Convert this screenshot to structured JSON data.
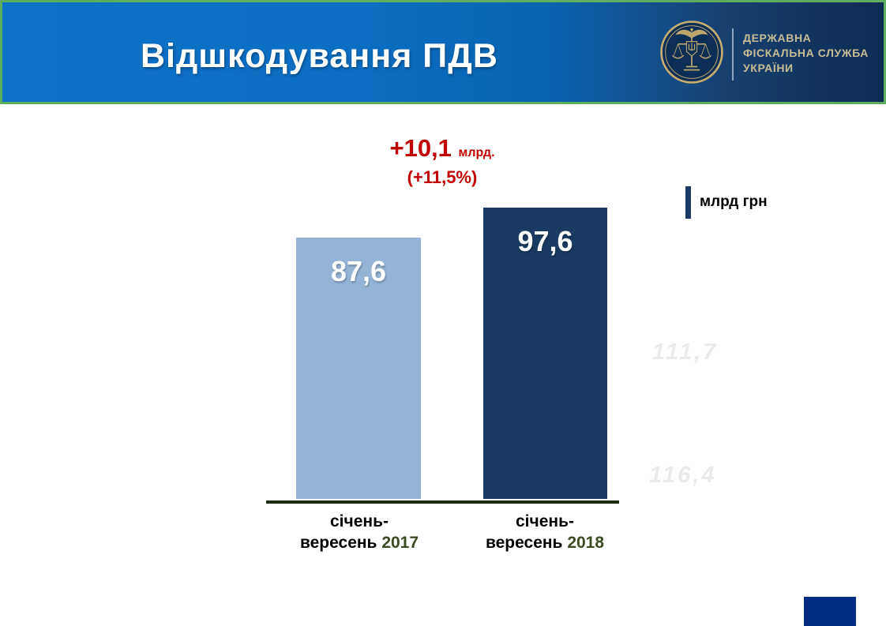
{
  "header": {
    "title": "Відшкодування ПДВ",
    "logo": {
      "org_line1": "ДЕРЖАВНА",
      "org_line2": "ФІСКАЛЬНА СЛУЖБА",
      "org_line3": "УКРАЇНИ"
    }
  },
  "annotation": {
    "delta_value": "+10,1",
    "delta_unit": "млрд.",
    "delta_percent": "(+11,5%)",
    "color": "#C00000"
  },
  "unit_label": "млрд грн",
  "chart_data": {
    "type": "bar",
    "title": "Відшкодування ПДВ",
    "ylabel": "млрд грн",
    "categories": [
      "січень-вересень 2017",
      "січень-вересень 2018"
    ],
    "values": [
      87.6,
      97.6
    ],
    "value_labels": [
      "87,6",
      "97,6"
    ],
    "series_colors": [
      "#95B3D7",
      "#1A3A63"
    ],
    "annotation": "+10,1 млрд. (+11,5%)",
    "ylim": [
      0,
      97.6
    ],
    "grid": false,
    "legend_position": "none"
  },
  "x_labels": [
    {
      "line1": "січень-",
      "line2": "вересень ",
      "year": "2017"
    },
    {
      "line1": "січень-",
      "line2": "вересень ",
      "year": "2018"
    }
  ],
  "ghost_labels": {
    "first": "111,7",
    "second": "116,4"
  },
  "colors": {
    "header_gradient_left": "#0D72C8",
    "header_gradient_right": "#0E2B53",
    "header_border_green": "#5FAE5F",
    "bar_light": "#95B3D7",
    "bar_dark": "#1A3A63",
    "axis_line": "#1F2A12",
    "year_text": "#3A4A22",
    "annotation_red": "#C00000",
    "corner_navy": "#002D82",
    "logo_gold": "#C9BC94"
  }
}
